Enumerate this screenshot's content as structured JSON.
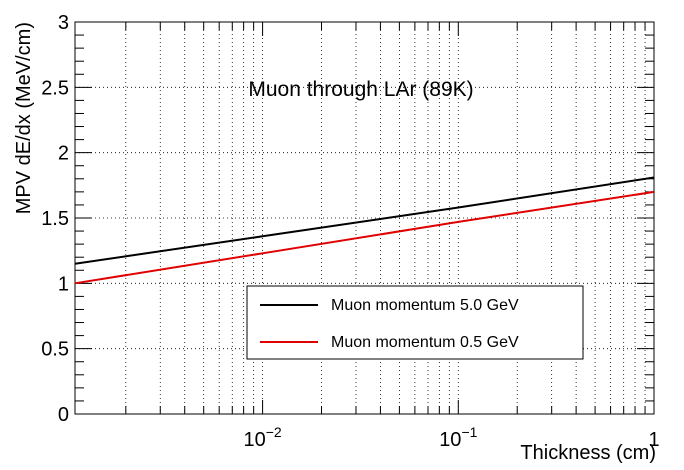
{
  "chart_data": {
    "type": "line",
    "title": "Muon through LAr (89K)",
    "xlabel": "Thickness (cm)",
    "ylabel": "MPV dE/dx (MeV/cm)",
    "xscale": "log",
    "xlim": [
      0.0011,
      1.0
    ],
    "ylim": [
      0,
      3
    ],
    "grid": true,
    "legend_position": "lower-right",
    "x_ticks": [
      {
        "value": 0.01,
        "base": "10",
        "exp": "−2"
      },
      {
        "value": 0.1,
        "base": "10",
        "exp": "−1"
      },
      {
        "value": 1,
        "base": "1",
        "exp": ""
      }
    ],
    "y_ticks": [
      "0",
      "0.5",
      "1",
      "1.5",
      "2",
      "2.5",
      "3"
    ],
    "series": [
      {
        "name": "Muon momentum 5.0 GeV",
        "color": "#000000",
        "x": [
          0.0011,
          0.01,
          0.1,
          1.0
        ],
        "y": [
          1.15,
          1.36,
          1.58,
          1.81
        ]
      },
      {
        "name": "Muon momentum 0.5 GeV",
        "color": "#e00000",
        "x": [
          0.0011,
          0.01,
          0.1,
          1.0
        ],
        "y": [
          1.0,
          1.23,
          1.47,
          1.7
        ]
      }
    ]
  }
}
